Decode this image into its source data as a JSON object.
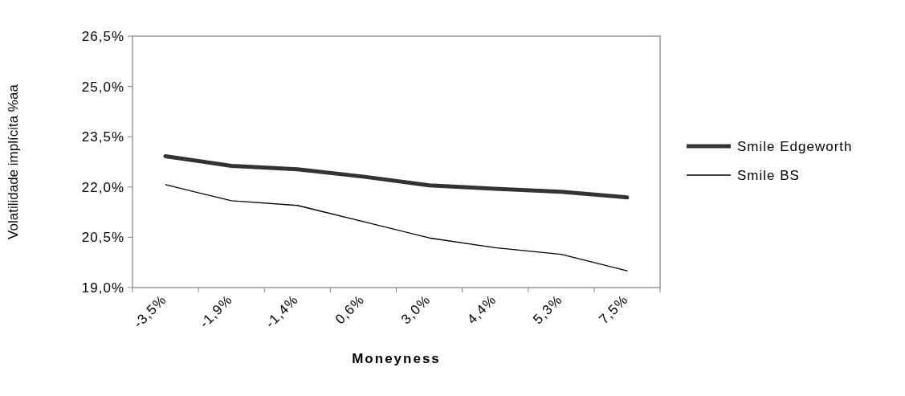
{
  "chart_data": {
    "type": "line",
    "xlabel": "Moneyness",
    "ylabel": "Volatilidade implícita %aa",
    "categories": [
      "-3,5%",
      "-1,9%",
      "-1,4%",
      "0,6%",
      "3,0%",
      "4,4%",
      "5,3%",
      "7,5%"
    ],
    "series": [
      {
        "name": "Smile Edgeworth",
        "color": "#333333",
        "values": [
          22.92,
          22.63,
          22.53,
          22.31,
          22.05,
          21.95,
          21.86,
          21.69
        ]
      },
      {
        "name": "Smile BS",
        "color": "#000000",
        "values": [
          22.07,
          21.59,
          21.45,
          20.97,
          20.48,
          20.19,
          19.99,
          19.5
        ]
      }
    ],
    "ylim": [
      19,
      26.5
    ],
    "yticks": [
      {
        "value": 19,
        "label": "19,0%"
      },
      {
        "value": 20.5,
        "label": "20,5%"
      },
      {
        "value": 22,
        "label": "22,0%"
      },
      {
        "value": 23.5,
        "label": "23,5%"
      },
      {
        "value": 25,
        "label": "25,0%"
      },
      {
        "value": 26.5,
        "label": "26,5%"
      }
    ],
    "grid": false,
    "legend": "right",
    "marker": "none",
    "line_style": "solid"
  }
}
